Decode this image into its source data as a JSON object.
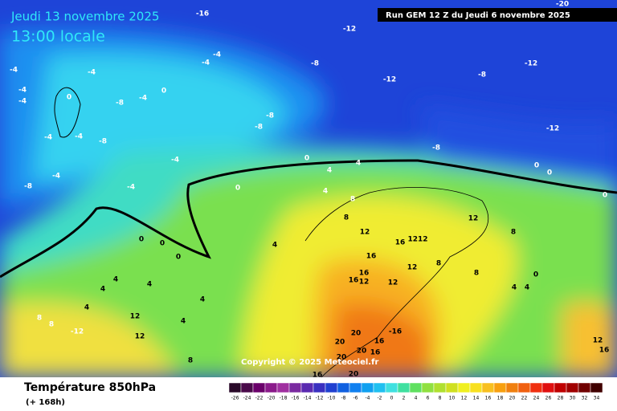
{
  "header": {
    "date": "Jeudi 13 novembre 2025",
    "time": "13:00 locale",
    "run": "Run GEM 12 Z du Jeudi 6 novembre 2025"
  },
  "copyright": "Copyright © 2025 Meteociel.fr",
  "footer": {
    "title": "Température 850hPa",
    "lead": "(+ 168h)"
  },
  "legend": {
    "labels": [
      -26,
      -24,
      -22,
      -20,
      -18,
      -16,
      -14,
      -12,
      -10,
      -8,
      -6,
      -4,
      -2,
      0,
      2,
      4,
      6,
      8,
      10,
      12,
      14,
      16,
      18,
      20,
      22,
      24,
      26,
      28,
      30,
      32,
      34
    ],
    "colors": [
      "#2a0a2a",
      "#4a0a4a",
      "#6a006a",
      "#8a1a8a",
      "#a030a0",
      "#7a2aa0",
      "#5a2ab0",
      "#3a30c0",
      "#2040d0",
      "#1060e0",
      "#1080f0",
      "#10a0f0",
      "#20c0f0",
      "#40e0e0",
      "#40e0a0",
      "#60e060",
      "#90e040",
      "#b0e030",
      "#d0e020",
      "#f0f020",
      "#f8e020",
      "#f8c020",
      "#f8a010",
      "#f08010",
      "#f06010",
      "#f03010",
      "#e01010",
      "#c00000",
      "#a00000",
      "#700000",
      "#400000"
    ]
  },
  "map_labels": [
    "-16",
    "-12",
    "-20",
    "-4",
    "-4",
    "-4",
    "-4",
    "-8",
    "-12",
    "-12",
    "-8",
    "0",
    "-4",
    "-4",
    "-4",
    "-8",
    "0",
    "-8",
    "-8",
    "-12",
    "-4",
    "-4",
    "-8",
    "-8",
    "0",
    "-4",
    "-4",
    "-8",
    "-4",
    "0",
    "0",
    "0",
    "4",
    "4",
    "4",
    "8",
    "0",
    "8",
    "12",
    "12",
    "0",
    "0",
    "4",
    "16",
    "1212",
    "0",
    "16",
    "12",
    "8",
    "8",
    "4",
    "4",
    "4",
    "16",
    "8",
    "16",
    "12",
    "12",
    "0",
    "4",
    "4",
    "4",
    "12",
    "4",
    "8",
    "8",
    "-12",
    "12",
    "4",
    "20",
    "-16",
    "16",
    "20",
    "20",
    "16",
    "8",
    "20",
    "16",
    "20",
    "12",
    "16"
  ]
}
